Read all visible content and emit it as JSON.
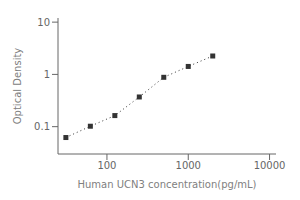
{
  "chart_data": {
    "type": "line",
    "x": [
      31.25,
      62.5,
      125,
      250,
      500,
      1000,
      2000
    ],
    "values": [
      0.062,
      0.102,
      0.163,
      0.37,
      0.88,
      1.42,
      2.25
    ],
    "xlabel": "Human UCN3 concentration(pg/mL)",
    "ylabel": "Optical Density",
    "log": true,
    "xlim": [
      25,
      12000
    ],
    "ylim": [
      0.03,
      12
    ],
    "xticks": [
      100,
      1000,
      10000
    ],
    "yticks": [
      0.1,
      1,
      10
    ],
    "color": "#333333",
    "marker": "square",
    "line_style": "dotted"
  }
}
